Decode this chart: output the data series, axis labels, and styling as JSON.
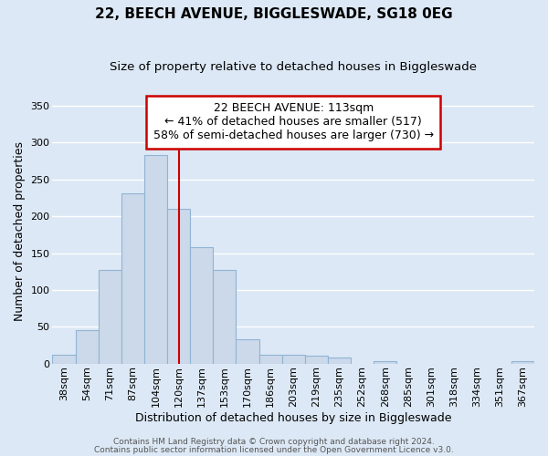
{
  "title": "22, BEECH AVENUE, BIGGLESWADE, SG18 0EG",
  "subtitle": "Size of property relative to detached houses in Biggleswade",
  "xlabel": "Distribution of detached houses by size in Biggleswade",
  "ylabel": "Number of detached properties",
  "categories": [
    "38sqm",
    "54sqm",
    "71sqm",
    "87sqm",
    "104sqm",
    "120sqm",
    "137sqm",
    "153sqm",
    "170sqm",
    "186sqm",
    "203sqm",
    "219sqm",
    "235sqm",
    "252sqm",
    "268sqm",
    "285sqm",
    "301sqm",
    "318sqm",
    "334sqm",
    "351sqm",
    "367sqm"
  ],
  "values": [
    12,
    46,
    127,
    231,
    283,
    210,
    158,
    127,
    33,
    12,
    12,
    11,
    8,
    0,
    3,
    0,
    0,
    0,
    0,
    0,
    3
  ],
  "bar_color": "#ccd9ea",
  "bar_edge_color": "#90b4d4",
  "bar_width": 1.0,
  "ylim": [
    0,
    360
  ],
  "yticks": [
    0,
    50,
    100,
    150,
    200,
    250,
    300,
    350
  ],
  "red_line_x": 5.0,
  "annotation_title": "22 BEECH AVENUE: 113sqm",
  "annotation_line1": "← 41% of detached houses are smaller (517)",
  "annotation_line2": "58% of semi-detached houses are larger (730) →",
  "annotation_box_color": "#ffffff",
  "annotation_box_edge": "#cc0000",
  "footer1": "Contains HM Land Registry data © Crown copyright and database right 2024.",
  "footer2": "Contains public sector information licensed under the Open Government Licence v3.0.",
  "background_color": "#dce8f5",
  "grid_color": "#ffffff",
  "title_fontsize": 11,
  "subtitle_fontsize": 9.5,
  "axis_label_fontsize": 9,
  "tick_label_fontsize": 8,
  "annotation_fontsize": 9,
  "footer_fontsize": 6.5
}
